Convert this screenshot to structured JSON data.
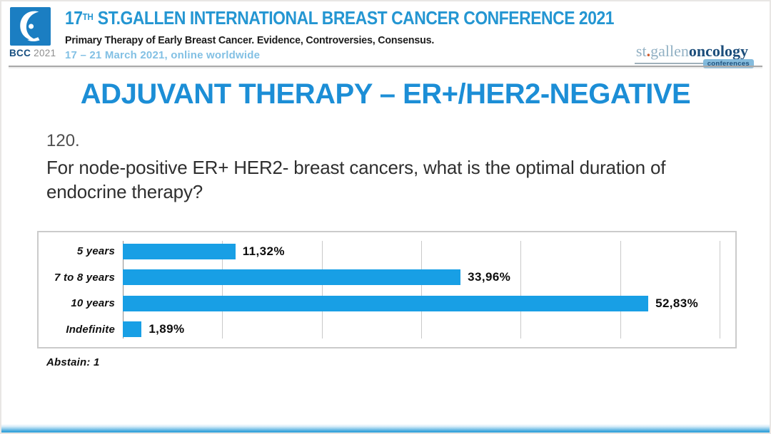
{
  "header": {
    "logo_caption_bcc": "BCC",
    "logo_caption_year": "2021",
    "title_num": "17",
    "title_sup": "TH",
    "title_rest": " ST.GALLEN INTERNATIONAL BREAST CANCER CONFERENCE 2021",
    "subtitle": "Primary Therapy of Early Breast Cancer. Evidence, Controversies, Consensus.",
    "dates": "17 – 21 March 2021, online worldwide",
    "org_logo_part1": "st",
    "org_logo_dot": ".",
    "org_logo_part2": "gallen",
    "org_logo_part3": "oncology",
    "org_logo_badge": "conferences"
  },
  "main": {
    "slide_title": "ADJUVANT THERAPY – ER+/HER2-NEGATIVE",
    "question_number": "120.",
    "question_text": "For node-positive ER+ HER2- breast cancers, what is the optimal duration of endocrine therapy?",
    "abstain_note": "Abstain: 1"
  },
  "chart_data": {
    "type": "bar",
    "orientation": "horizontal",
    "categories": [
      "5 years",
      "7 to 8 years",
      "10 years",
      "Indefinite"
    ],
    "values": [
      11.32,
      33.96,
      52.83,
      1.89
    ],
    "value_labels": [
      "11,32%",
      "33,96%",
      "52,83%",
      "1,89%"
    ],
    "title": "",
    "xlabel": "",
    "ylabel": "",
    "xlim": [
      0,
      60
    ],
    "gridline_interval": 10,
    "grid": true,
    "legend": false,
    "bar_color": "#189fe5"
  },
  "colors": {
    "accent_blue": "#1c8ed6",
    "header_title_blue": "#2496d2",
    "dates_light_blue": "#82c0e4",
    "bar_blue": "#189fe5",
    "logo_square_blue": "#1b7ec2",
    "org_logo_light": "#92b1c4",
    "org_logo_dark": "#1d4e7b",
    "org_logo_dot_orange": "#cd5a2d"
  }
}
